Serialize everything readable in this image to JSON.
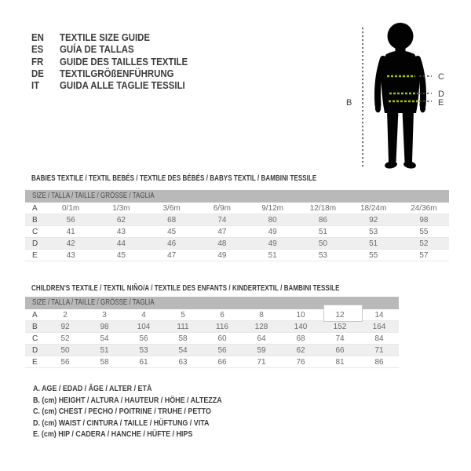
{
  "languages": [
    {
      "code": "EN",
      "text": "TEXTILE SIZE GUIDE"
    },
    {
      "code": "ES",
      "text": "GUÍA DE TALLAS"
    },
    {
      "code": "FR",
      "text": "GUIDE DES TAILLES TEXTILE"
    },
    {
      "code": "DE",
      "text": "TEXTILGRÖßENFÜHRUNG"
    },
    {
      "code": "IT",
      "text": "GUIDA ALLE TAGLIE TESSILI"
    }
  ],
  "figure": {
    "height_label": "B",
    "chest_label": "C",
    "waist_label": "D",
    "hip_label": "E"
  },
  "colors": {
    "measure_dash_green": "#a2bf0b",
    "dash_dark": "#4d4d4d",
    "silhouette": "#020202",
    "table_header_bg": "#b9b9b9",
    "row_stripe": "#efefef",
    "highlight_border": "#c9c9c9"
  },
  "babies_table": {
    "title": "BABIES TEXTILE / TEXTIL BEBÉS / TEXTILE DES BÉBÉS / BABYS TEXTIL / BAMBINI TESSILE",
    "header": "SIZE / TALLA / TAILLE / GRÖSSE / TAGLIA",
    "rows": [
      {
        "label": "A",
        "values": [
          "0/1m",
          "1/3m",
          "3/6m",
          "6/9m",
          "9/12m",
          "12/18m",
          "18/24m",
          "24/36m"
        ]
      },
      {
        "label": "B",
        "values": [
          "56",
          "62",
          "68",
          "74",
          "80",
          "86",
          "92",
          "98"
        ]
      },
      {
        "label": "C",
        "values": [
          "41",
          "43",
          "45",
          "47",
          "49",
          "51",
          "53",
          "55"
        ]
      },
      {
        "label": "D",
        "values": [
          "42",
          "44",
          "46",
          "48",
          "49",
          "50",
          "51",
          "52"
        ]
      },
      {
        "label": "E",
        "values": [
          "43",
          "45",
          "47",
          "49",
          "51",
          "53",
          "55",
          "57"
        ]
      }
    ]
  },
  "children_table": {
    "title": "CHILDREN'S TEXTILE / TEXTIL NIÑO/A / TEXTILE DES ENFANTS / KINDERTEXTIL / BAMBINI TESSILE",
    "header": "SIZE / TALLA / TAILLE / GRÖSSE / TAGLIA",
    "highlighted_cell": {
      "row": "A",
      "value": "12"
    },
    "rows": [
      {
        "label": "A",
        "values": [
          "2",
          "3",
          "4",
          "5",
          "6",
          "8",
          "10",
          "12",
          "14"
        ]
      },
      {
        "label": "B",
        "values": [
          "92",
          "98",
          "104",
          "111",
          "116",
          "128",
          "140",
          "152",
          "164"
        ]
      },
      {
        "label": "C",
        "values": [
          "52",
          "54",
          "56",
          "58",
          "60",
          "64",
          "68",
          "74",
          "84"
        ]
      },
      {
        "label": "D",
        "values": [
          "50",
          "51",
          "53",
          "54",
          "56",
          "59",
          "62",
          "66",
          "71"
        ]
      },
      {
        "label": "E",
        "values": [
          "56",
          "58",
          "61",
          "63",
          "66",
          "71",
          "76",
          "81",
          "86"
        ]
      }
    ]
  },
  "legend": [
    "A. AGE / EDAD / ÂGE / ALTER / ETÀ",
    "B. (cm) HEIGHT / ALTURA / HAUTEUR / HÖHE / ALTEZZA",
    "C. (cm) CHEST / PECHO / POITRINE / TRUHE / PETTO",
    "D. (cm) WAIST / CINTURA / TAILLE / HÜFTUNG / VITA",
    "E. (cm) HIP / CADERA / HANCHE / HÜFTE / HIPS"
  ]
}
